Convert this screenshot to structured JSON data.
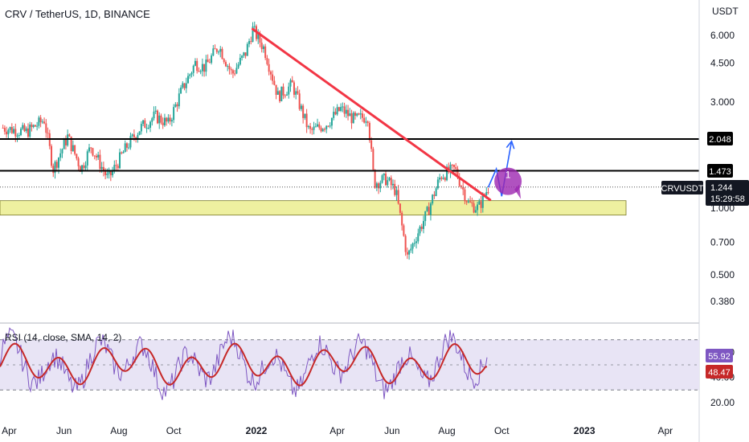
{
  "title": "CRV / TetherUS, 1D, BINANCE",
  "currency": "USDT",
  "colors": {
    "up": "#26a69a",
    "down": "#ef5350",
    "trendline": "#f23645",
    "projection": "#2962ff",
    "support_zone": "#eef0a0",
    "rsi_line": "#7e57c2",
    "rsi_ma": "#c62828",
    "rsi_band": "#e8e4f5",
    "circle": "#9c27b0"
  },
  "price_axis": {
    "scale": "log",
    "ticks": [
      "6.000",
      "4.500",
      "3.000",
      "1.000",
      "0.700",
      "0.500",
      "0.380"
    ]
  },
  "time_axis": {
    "ticks": [
      "Apr",
      "Jun",
      "Aug",
      "Oct",
      "2022",
      "Apr",
      "Jun",
      "Aug",
      "Oct",
      "2023",
      "Apr"
    ]
  },
  "price_tags": {
    "level_high": "2.048",
    "level_mid": "1.473",
    "current_price": "1.244",
    "symbol": "CRVUSDT",
    "countdown": "15:29:58"
  },
  "annotation": {
    "circle_label": "1"
  },
  "rsi": {
    "title": "RSI (14, close, SMA, 14, 2)",
    "ticks": [
      "60.00",
      "40.00",
      "20.00"
    ],
    "value": "55.92",
    "ma_value": "48.47",
    "levels": [
      70,
      50,
      30
    ]
  },
  "chart_data": {
    "type": "candlestick",
    "title": "CRV / TetherUS, 1D, BINANCE",
    "y_scale": "log",
    "ylim": [
      0.38,
      6.5
    ],
    "horizontal_levels": [
      2.048,
      1.473
    ],
    "support_zone": [
      0.93,
      1.08
    ],
    "trendline": {
      "from": {
        "date": "2021-12-28",
        "price": 6.4
      },
      "to": {
        "date": "2022-09-18",
        "price": 1.09
      }
    },
    "projection_path": [
      {
        "date": "2022-09-16",
        "price": 1.24
      },
      {
        "date": "2022-09-25",
        "price": 1.5
      },
      {
        "date": "2022-10-01",
        "price": 1.13
      },
      {
        "date": "2022-10-12",
        "price": 2.0
      }
    ],
    "price_path": [
      {
        "date": "2021-03-25",
        "price": 2.3
      },
      {
        "date": "2021-04-20",
        "price": 2.2
      },
      {
        "date": "2021-05-10",
        "price": 2.5
      },
      {
        "date": "2021-05-20",
        "price": 1.5
      },
      {
        "date": "2021-06-05",
        "price": 2.1
      },
      {
        "date": "2021-06-20",
        "price": 1.5
      },
      {
        "date": "2021-07-01",
        "price": 1.9
      },
      {
        "date": "2021-07-20",
        "price": 1.35
      },
      {
        "date": "2021-08-10",
        "price": 1.9
      },
      {
        "date": "2021-08-25",
        "price": 2.3
      },
      {
        "date": "2021-09-10",
        "price": 2.6
      },
      {
        "date": "2021-09-25",
        "price": 2.4
      },
      {
        "date": "2021-10-10",
        "price": 3.4
      },
      {
        "date": "2021-10-25",
        "price": 4.5
      },
      {
        "date": "2021-11-05",
        "price": 4.3
      },
      {
        "date": "2021-11-20",
        "price": 5.4
      },
      {
        "date": "2021-12-05",
        "price": 4.0
      },
      {
        "date": "2021-12-20",
        "price": 5.0
      },
      {
        "date": "2021-12-28",
        "price": 6.4
      },
      {
        "date": "2022-01-10",
        "price": 5.2
      },
      {
        "date": "2022-01-25",
        "price": 3.2
      },
      {
        "date": "2022-02-10",
        "price": 3.6
      },
      {
        "date": "2022-03-01",
        "price": 2.2
      },
      {
        "date": "2022-03-20",
        "price": 2.4
      },
      {
        "date": "2022-04-05",
        "price": 2.8
      },
      {
        "date": "2022-04-20",
        "price": 2.5
      },
      {
        "date": "2022-05-05",
        "price": 2.6
      },
      {
        "date": "2022-05-12",
        "price": 1.3
      },
      {
        "date": "2022-05-25",
        "price": 1.35
      },
      {
        "date": "2022-06-05",
        "price": 1.2
      },
      {
        "date": "2022-06-18",
        "price": 0.6
      },
      {
        "date": "2022-06-28",
        "price": 0.75
      },
      {
        "date": "2022-07-10",
        "price": 0.95
      },
      {
        "date": "2022-07-25",
        "price": 1.4
      },
      {
        "date": "2022-08-10",
        "price": 1.5
      },
      {
        "date": "2022-08-25",
        "price": 1.05
      },
      {
        "date": "2022-09-05",
        "price": 1.0
      },
      {
        "date": "2022-09-16",
        "price": 1.24
      }
    ]
  }
}
